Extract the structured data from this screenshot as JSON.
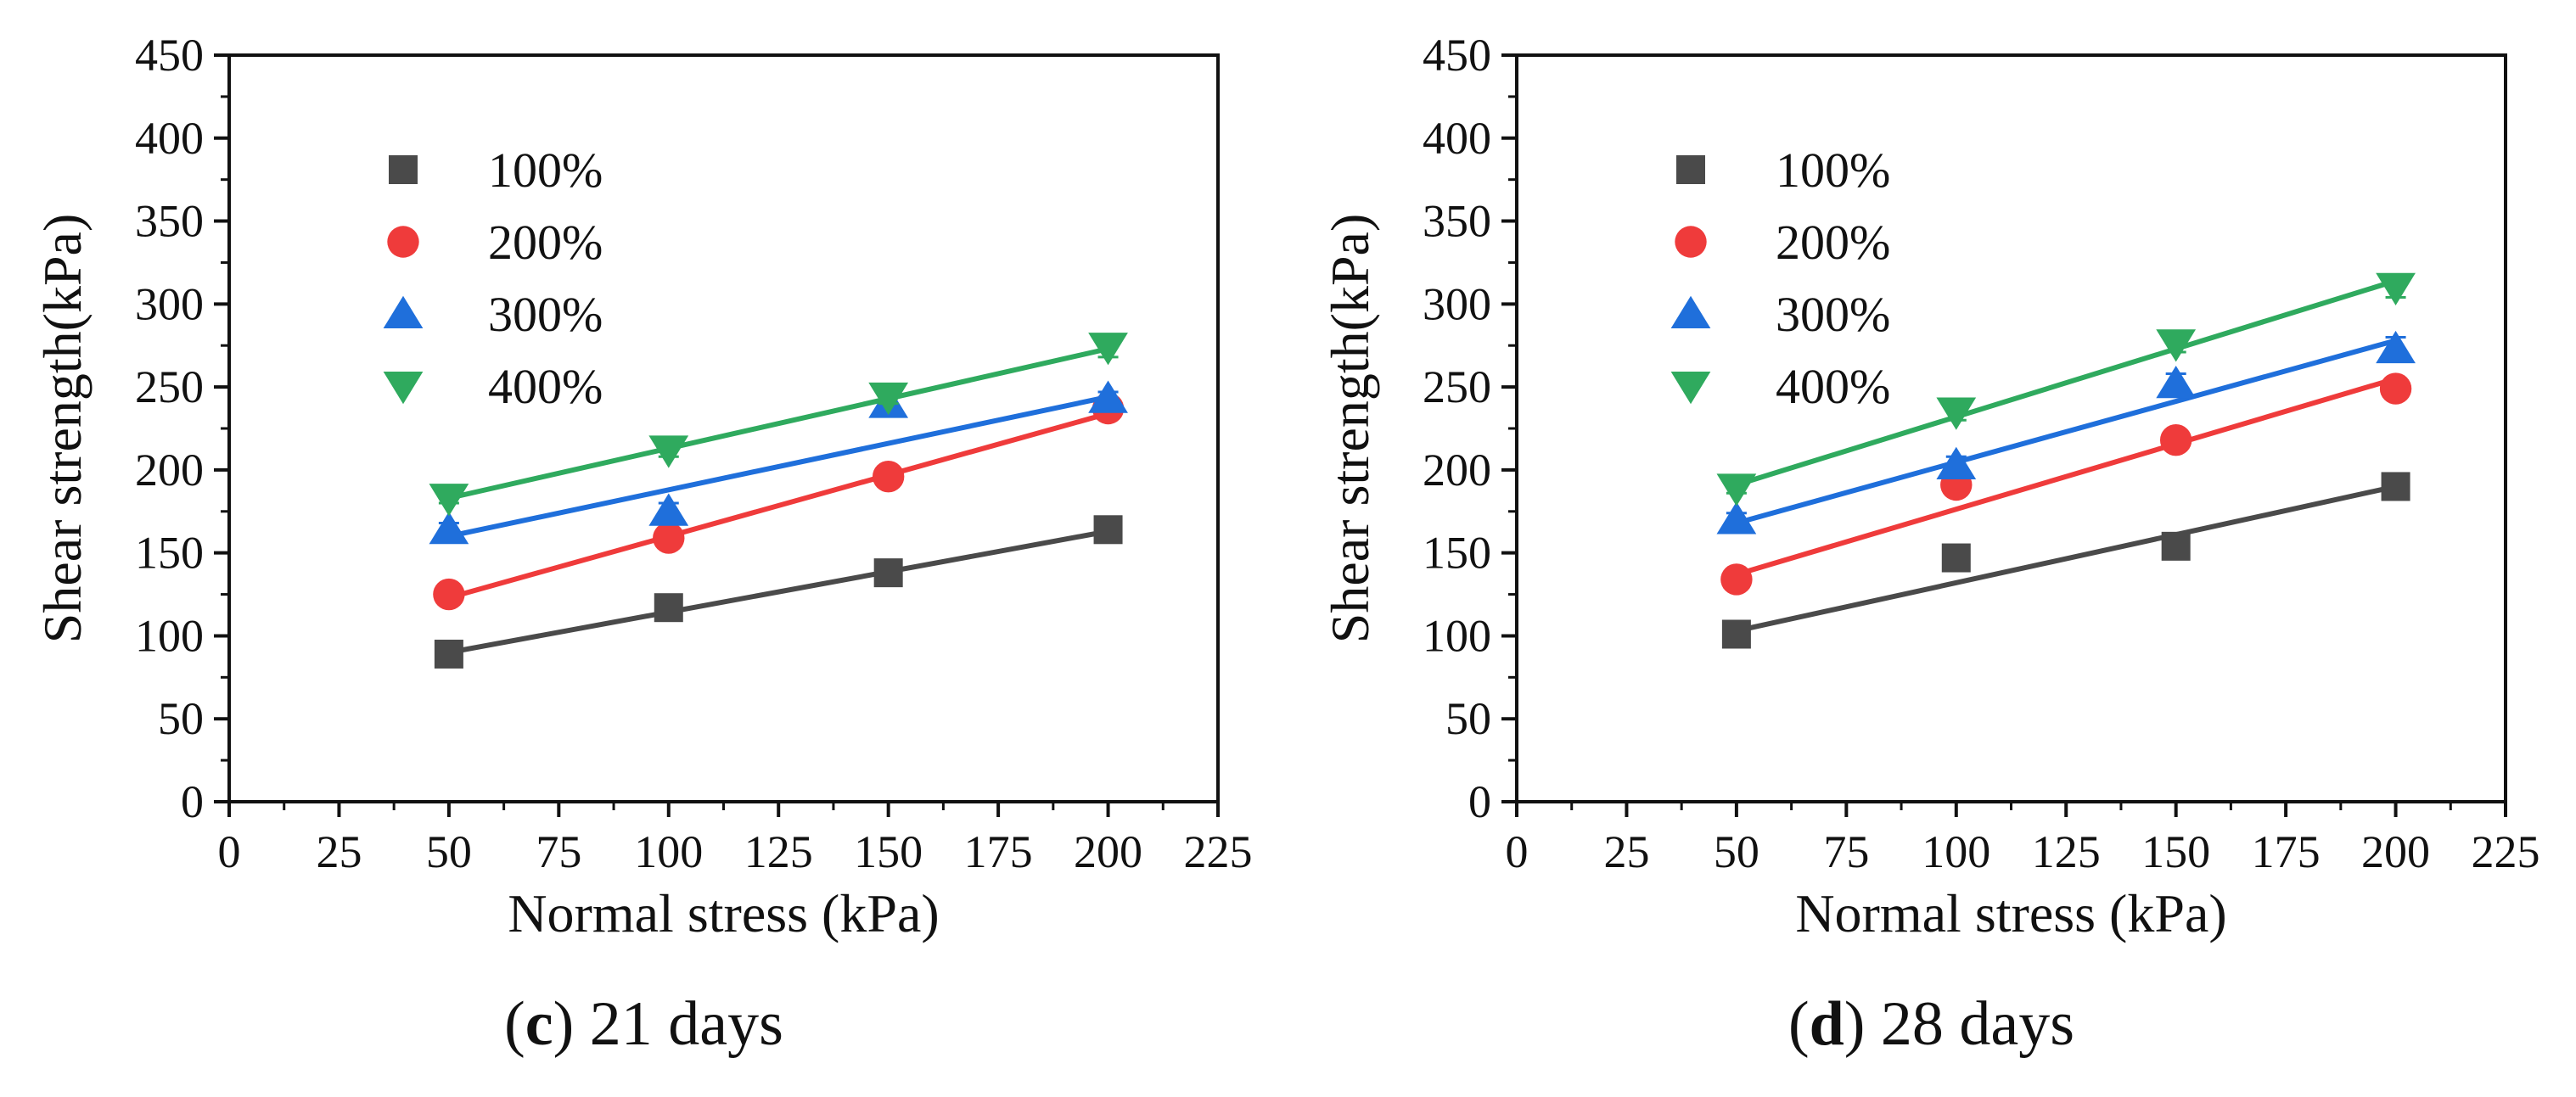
{
  "chart_data": [
    {
      "type": "scatter",
      "panel_letter": "c",
      "caption": "21 days",
      "xlabel": "Normal stress (kPa)",
      "ylabel": "Shear strength(kPa)",
      "xlim": [
        0,
        225
      ],
      "ylim": [
        0,
        450
      ],
      "xticks": [
        0,
        25,
        50,
        75,
        100,
        125,
        150,
        175,
        200,
        225
      ],
      "yticks": [
        0,
        50,
        100,
        150,
        200,
        250,
        300,
        350,
        400,
        450
      ],
      "legend_position": "top-left",
      "x": [
        50,
        100,
        150,
        200
      ],
      "series": [
        {
          "name": "100%",
          "marker": "square",
          "color": "#4a4a4a",
          "values": [
            89,
            117,
            138,
            164
          ],
          "errors": [
            3,
            4,
            3,
            4
          ],
          "fit": [
            90,
            115,
            139,
            163
          ]
        },
        {
          "name": "200%",
          "marker": "circle",
          "color": "#ef3b3b",
          "values": [
            125,
            159,
            196,
            237
          ],
          "errors": [
            3,
            4,
            4,
            4
          ],
          "fit": [
            123,
            160,
            197,
            234
          ]
        },
        {
          "name": "300%",
          "marker": "triangle-up",
          "color": "#1f6fdb",
          "values": [
            164,
            175,
            240,
            243
          ],
          "errors": [
            4,
            5,
            7,
            4
          ],
          "fit": [
            160,
            188,
            216,
            244
          ]
        },
        {
          "name": "400%",
          "marker": "triangle-down",
          "color": "#2faa5e",
          "values": [
            183,
            212,
            244,
            274
          ],
          "errors": [
            3,
            4,
            4,
            6
          ],
          "fit": [
            183,
            213,
            243,
            273
          ]
        }
      ]
    },
    {
      "type": "scatter",
      "panel_letter": "d",
      "caption": "28 days",
      "xlabel": "Normal stress (kPa)",
      "ylabel": "Shear strength(kPa)",
      "xlim": [
        0,
        225
      ],
      "ylim": [
        0,
        450
      ],
      "xticks": [
        0,
        25,
        50,
        75,
        100,
        125,
        150,
        175,
        200,
        225
      ],
      "yticks": [
        0,
        50,
        100,
        150,
        200,
        250,
        300,
        350,
        400,
        450
      ],
      "legend_position": "top-left",
      "x": [
        50,
        100,
        150,
        200
      ],
      "series": [
        {
          "name": "100%",
          "marker": "square",
          "color": "#4a4a4a",
          "values": [
            101,
            147,
            154,
            190
          ],
          "errors": [
            3,
            3,
            5,
            3
          ],
          "fit": [
            103,
            132,
            161,
            190
          ]
        },
        {
          "name": "200%",
          "marker": "circle",
          "color": "#ef3b3b",
          "values": [
            134,
            191,
            218,
            249
          ],
          "errors": [
            4,
            6,
            4,
            5
          ],
          "fit": [
            137,
            176,
            216,
            255
          ]
        },
        {
          "name": "300%",
          "marker": "triangle-up",
          "color": "#1f6fdb",
          "values": [
            170,
            203,
            252,
            273
          ],
          "errors": [
            4,
            5,
            6,
            7
          ],
          "fit": [
            168,
            205,
            241,
            278
          ]
        },
        {
          "name": "400%",
          "marker": "triangle-down",
          "color": "#2faa5e",
          "values": [
            189,
            235,
            276,
            310
          ],
          "errors": [
            3,
            5,
            5,
            6
          ],
          "fit": [
            191,
            232,
            273,
            314
          ]
        }
      ]
    }
  ]
}
